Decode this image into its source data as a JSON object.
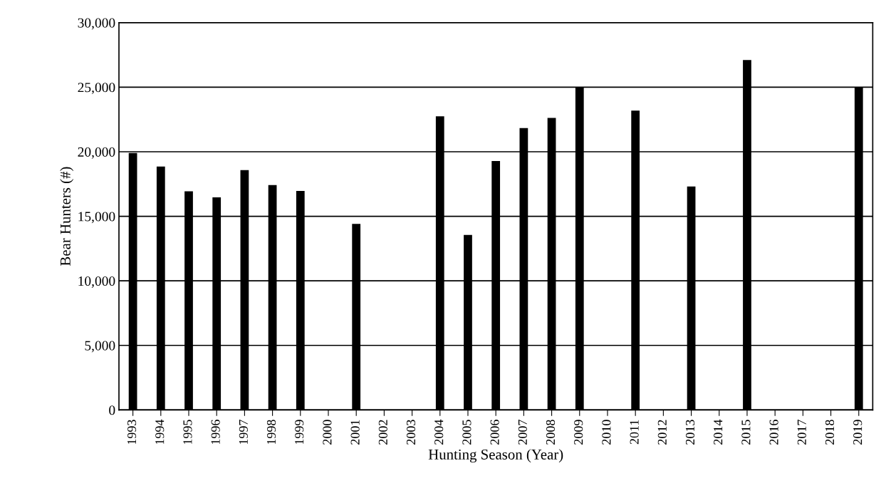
{
  "chart_data": {
    "type": "bar",
    "xlabel": "Hunting Season (Year)",
    "ylabel": "Bear Hunters (#)",
    "categories": [
      "1993",
      "1994",
      "1995",
      "1996",
      "1997",
      "1998",
      "1999",
      "2000",
      "2001",
      "2002",
      "2003",
      "2004",
      "2005",
      "2006",
      "2007",
      "2008",
      "2009",
      "2010",
      "2011",
      "2012",
      "2013",
      "2014",
      "2015",
      "2016",
      "2017",
      "2018",
      "2019"
    ],
    "values": [
      19900,
      18860,
      16940,
      16460,
      18580,
      17420,
      16960,
      null,
      14410,
      null,
      null,
      22750,
      13560,
      19280,
      21840,
      22620,
      25000,
      null,
      23190,
      null,
      17310,
      null,
      27100,
      null,
      null,
      null,
      25000
    ],
    "color": "#000000",
    "ylim": [
      0,
      30000
    ],
    "yticks": [
      {
        "value": 0,
        "label": "0"
      },
      {
        "value": 5000,
        "label": "5,000"
      },
      {
        "value": 10000,
        "label": "10,000"
      },
      {
        "value": 15000,
        "label": "15,000"
      },
      {
        "value": 20000,
        "label": "20,000"
      },
      {
        "value": 25000,
        "label": "25,000"
      },
      {
        "value": 30000,
        "label": "30,000"
      }
    ],
    "grid": "y"
  }
}
